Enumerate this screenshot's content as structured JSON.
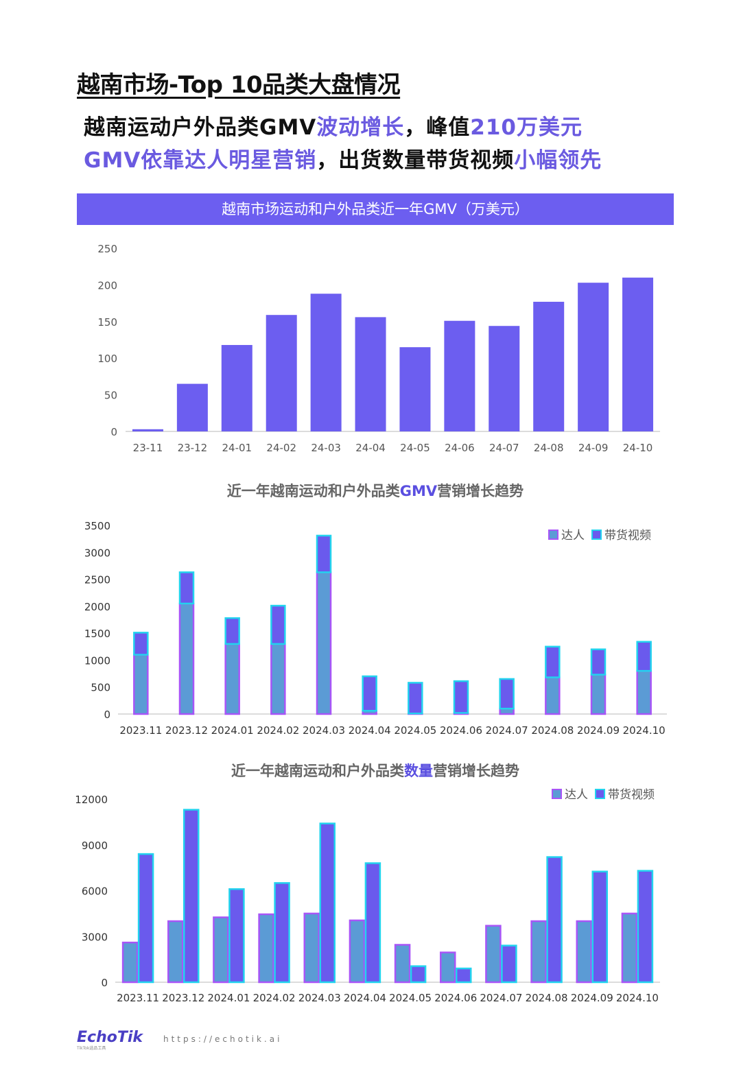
{
  "page_title": "越南市场-Top 10品类大盘情况",
  "headline1": {
    "a": "越南运动户外品类GMV",
    "b": "波动增长",
    "c": "，峰值",
    "d": "210万美元"
  },
  "headline2": {
    "a": "GMV依靠达人明星营销",
    "b": "，出货数量带货视频",
    "c": "小幅领先"
  },
  "colors": {
    "accent": "#6c5ef0",
    "series_darenren": "#5b9bd5",
    "series_darenren_edge": "#a855f7",
    "series_video": "#6a5aed",
    "series_video_edge": "#22d3ee"
  },
  "chart_data": [
    {
      "type": "bar",
      "title": "越南市场运动和户外品类近一年GMV（万美元）",
      "categories": [
        "23-11",
        "23-12",
        "24-01",
        "24-02",
        "24-03",
        "24-04",
        "24-05",
        "24-06",
        "24-07",
        "24-08",
        "24-09",
        "24-10"
      ],
      "values": [
        3,
        65,
        118,
        159,
        188,
        156,
        115,
        151,
        144,
        177,
        203,
        210
      ],
      "ylim": [
        0,
        250
      ],
      "yticks": [
        0,
        50,
        100,
        150,
        200,
        250
      ]
    },
    {
      "type": "bar",
      "stacked": true,
      "title_parts": [
        "近一年越南运动和户外品类",
        "GMV",
        "营销增长趋势"
      ],
      "categories": [
        "2023.11",
        "2023.12",
        "2024.01",
        "2024.02",
        "2024.03",
        "2024.04",
        "2024.05",
        "2024.06",
        "2024.07",
        "2024.08",
        "2024.09",
        "2024.10"
      ],
      "series": [
        {
          "name": "达人",
          "values": [
            1100,
            2050,
            1300,
            1300,
            2630,
            60,
            10,
            20,
            100,
            680,
            730,
            800
          ]
        },
        {
          "name": "带货视频",
          "values": [
            410,
            580,
            480,
            710,
            680,
            640,
            570,
            590,
            550,
            570,
            470,
            540
          ]
        }
      ],
      "ylim": [
        0,
        3500
      ],
      "yticks": [
        0,
        500,
        1000,
        1500,
        2000,
        2500,
        3000,
        3500
      ],
      "legend": "top-right"
    },
    {
      "type": "bar",
      "title_parts": [
        "近一年越南运动和户外品类",
        "数量",
        "营销增长趋势"
      ],
      "categories": [
        "2023.11",
        "2023.12",
        "2024.01",
        "2024.02",
        "2024.03",
        "2024.04",
        "2024.05",
        "2024.06",
        "2024.07",
        "2024.08",
        "2024.09",
        "2024.10"
      ],
      "series": [
        {
          "name": "达人",
          "values": [
            2600,
            4000,
            4250,
            4450,
            4500,
            4050,
            2450,
            1950,
            3700,
            4000,
            4000,
            4500
          ]
        },
        {
          "name": "带货视频",
          "values": [
            8400,
            11300,
            6100,
            6500,
            10400,
            7800,
            1050,
            900,
            2400,
            8200,
            7250,
            7300
          ]
        }
      ],
      "ylim": [
        0,
        12000
      ],
      "yticks": [
        0,
        3000,
        6000,
        9000,
        12000
      ],
      "legend": "top-right"
    }
  ],
  "footer": {
    "logo": "EchoTik",
    "logo_sub": "TikTok选品工具",
    "url": "https://echotik.ai"
  }
}
